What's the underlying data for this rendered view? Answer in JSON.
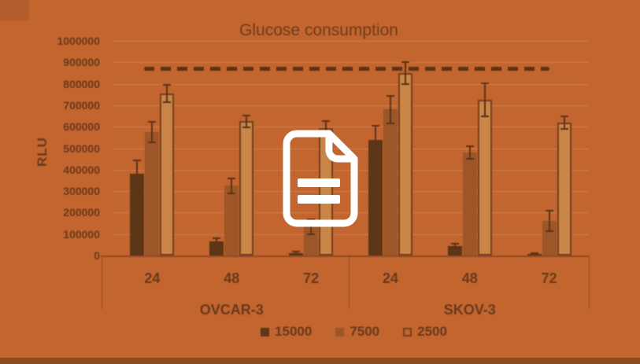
{
  "overlay": {
    "icon": "document-icon",
    "icon_color": "#ffffff"
  },
  "colors": {
    "background": "#c2652f",
    "text": "#6b3a1c",
    "bottom_strip": "#8c4a20",
    "reference_line": "#5d3316"
  },
  "chart_data": {
    "type": "bar",
    "title": "Glucose consumption",
    "ylabel": "RLU",
    "ylim": [
      0,
      1000000
    ],
    "yticks": [
      0,
      100000,
      200000,
      300000,
      400000,
      500000,
      600000,
      700000,
      800000,
      900000,
      1000000
    ],
    "grid": true,
    "legend_position": "bottom",
    "group_labels": [
      "OVCAR-3",
      "SKOV-3"
    ],
    "categories": [
      "24",
      "48",
      "72",
      "24",
      "48",
      "72"
    ],
    "series": [
      {
        "name": "15000",
        "color": "#5d3517",
        "values": [
          380000,
          65000,
          12000,
          540000,
          45000,
          8000
        ],
        "errors": [
          65000,
          15000,
          5000,
          65000,
          10000,
          4000
        ]
      },
      {
        "name": "7500",
        "color": "#9c5628",
        "values": [
          575000,
          325000,
          135000,
          680000,
          480000,
          160000
        ],
        "errors": [
          48000,
          35000,
          35000,
          65000,
          30000,
          48000
        ]
      },
      {
        "name": "2500",
        "color": "#c98647",
        "outline": "#74401f",
        "values": [
          755000,
          625000,
          595000,
          850000,
          725000,
          620000
        ],
        "errors": [
          40000,
          28000,
          30000,
          50000,
          77000,
          30000
        ]
      }
    ],
    "reference_line": {
      "value": 870000,
      "style": "dashed",
      "color": "#5d3316"
    }
  }
}
